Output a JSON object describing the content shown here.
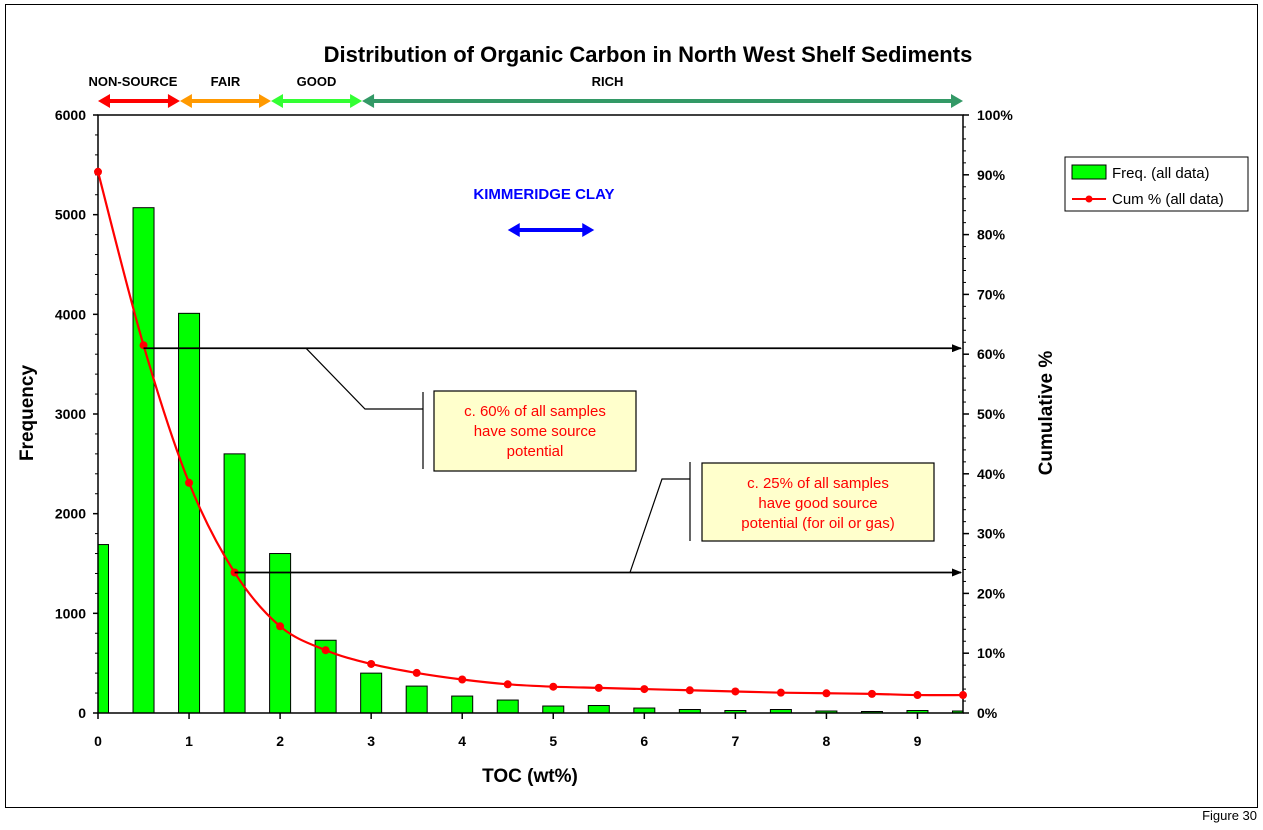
{
  "figure_label": "Figure 30",
  "colors": {
    "bar_fill": "#00ff00",
    "line": "#ff0000",
    "annotation_text": "#ff0000",
    "annotation_bg": "#ffffcc",
    "kimmeridge": "#0000ff",
    "range_non_source": "#ff0000",
    "range_fair": "#ff9900",
    "range_good": "#33ff33",
    "range_rich": "#339966"
  },
  "ranges": [
    {
      "label": "NON-SOURCE",
      "from": 0,
      "to": 0.9
    },
    {
      "label": "FAIR",
      "from": 0.9,
      "to": 1.9
    },
    {
      "label": "GOOD",
      "from": 1.9,
      "to": 2.9
    },
    {
      "label": "RICH",
      "from": 2.9,
      "to": 9.5
    }
  ],
  "kimmeridge": {
    "label": "KIMMERIDGE CLAY",
    "from": 4.5,
    "to": 5.45
  },
  "annotations": [
    {
      "lines": [
        "c. 60% of all samples",
        "have some source",
        "potential"
      ],
      "target_cum": 61
    },
    {
      "lines": [
        "c. 25% of all samples",
        "have good source",
        "potential (for oil or gas)"
      ],
      "target_cum": 23.5
    }
  ],
  "chart_data": {
    "type": "bar",
    "title": "Distribution of Organic Carbon in North West Shelf Sediments",
    "xlabel": "TOC (wt%)",
    "ylabel": "Frequency",
    "y2label": "Cumulative %",
    "xlim": [
      0,
      9.5
    ],
    "ylim": [
      0,
      6000
    ],
    "y2lim": [
      0,
      100
    ],
    "x_ticks": [
      "0",
      "1",
      "2",
      "3",
      "4",
      "5",
      "6",
      "7",
      "8",
      "9"
    ],
    "y_ticks": [
      "0",
      "1000",
      "2000",
      "3000",
      "4000",
      "5000",
      "6000"
    ],
    "y2_ticks": [
      "0%",
      "10%",
      "20%",
      "30%",
      "40%",
      "50%",
      "60%",
      "70%",
      "80%",
      "90%",
      "100%"
    ],
    "legend_position": "right",
    "series": [
      {
        "name": "Freq. (all data)",
        "type": "bar",
        "x": [
          0,
          0.5,
          1,
          1.5,
          2,
          2.5,
          3,
          3.5,
          4,
          4.5,
          5,
          5.5,
          6,
          6.5,
          7,
          7.5,
          8,
          8.5,
          9,
          9.5
        ],
        "values": [
          1690,
          5070,
          4010,
          2600,
          1600,
          730,
          400,
          270,
          170,
          130,
          70,
          75,
          50,
          35,
          25,
          35,
          20,
          15,
          25,
          20
        ]
      },
      {
        "name": "Cum % (all data)",
        "type": "line",
        "x": [
          0,
          0.5,
          1,
          1.5,
          2,
          2.5,
          3,
          3.5,
          4,
          4.5,
          5,
          5.5,
          6,
          6.5,
          7,
          7.5,
          8,
          8.5,
          9,
          9.5
        ],
        "values": [
          90.5,
          61.5,
          38.5,
          23.5,
          14.5,
          10.5,
          8.2,
          6.7,
          5.6,
          4.8,
          4.4,
          4.2,
          4.0,
          3.8,
          3.6,
          3.4,
          3.3,
          3.2,
          3.0,
          3.0
        ]
      }
    ]
  }
}
